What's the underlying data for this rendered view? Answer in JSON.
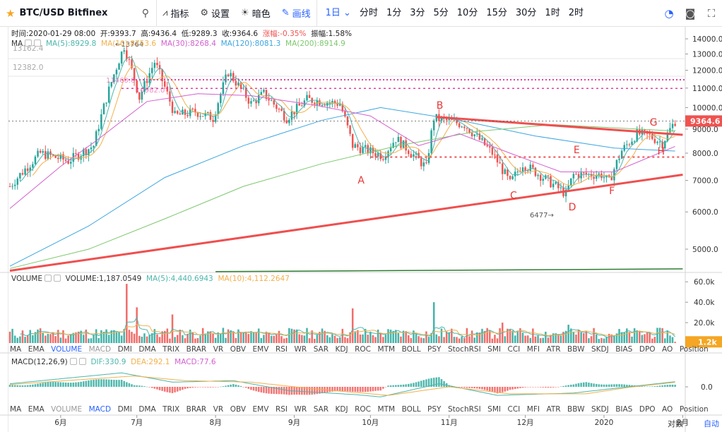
{
  "toolbar": {
    "symbol": "BTC/USD Bitfinex",
    "indicators_label": "指标",
    "settings_label": "设置",
    "theme_label": "暗色",
    "draw_label": "画线",
    "intervals": [
      "1日",
      "分时",
      "1分",
      "3分",
      "5分",
      "10分",
      "15分",
      "30分",
      "1时",
      "2时"
    ],
    "active_interval": "1日"
  },
  "ohlc_legend": {
    "time": "时间:2020-01-29 08:00",
    "open": "开:9393.7",
    "high": "高:9436.4",
    "low": "低:9289.3",
    "close": "收:9364.6",
    "change": "涨幅:-0.35%",
    "amplitude": "振幅:1.58%"
  },
  "ma_legend": {
    "label": "MA",
    "ma5": "MA(5):8929.8",
    "ma10": "MA(10):8753.6",
    "ma30": "MA(30):8268.4",
    "ma120": "MA(120):8081.3",
    "ma200": "MA(200):8914.9"
  },
  "volume_legend": {
    "label": "VOLUME",
    "volume": "VOLUME:1,187.0549",
    "ma5": "MA(5):4,440.6943",
    "ma10": "MA(10):4,112.2647"
  },
  "macd_legend": {
    "label": "MACD(12,26,9)",
    "dif": "DIF:330.9",
    "dea": "DEA:292.1",
    "macd": "MACD:77.6"
  },
  "indicator_tabs": [
    "MA",
    "EMA",
    "VOLUME",
    "MACD",
    "DMI",
    "DMA",
    "TRIX",
    "BRAR",
    "VR",
    "OBV",
    "EMV",
    "RSI",
    "WR",
    "SAR",
    "KDJ",
    "ROC",
    "MTM",
    "BOLL",
    "PSY",
    "StochRSI",
    "SMI",
    "CCI",
    "MFI",
    "ATR",
    "BBW",
    "SKDJ",
    "BIAS",
    "DPO",
    "AO",
    "Position"
  ],
  "indicator_tabs_state_1": {
    "on": [
      "VOLUME"
    ],
    "dim": [
      "MACD"
    ]
  },
  "indicator_tabs_state_2": {
    "on": [
      "MACD"
    ],
    "dim": [
      "VOLUME"
    ]
  },
  "footer": {
    "scale_label": "对数",
    "auto_label": "自动"
  },
  "colors": {
    "up": "#26a69a",
    "down": "#ef5350",
    "ma5": "#4db6ac",
    "ma10": "#f2b04c",
    "ma30": "#d35fd0",
    "ma120": "#3ea6e0",
    "ma200": "#7cc86c",
    "trend": "#ef4f4f",
    "accent": "#2962ff"
  },
  "chart_data": {
    "type": "candlestick",
    "y_scale": "log",
    "price_ticks": [
      14000,
      13000,
      12000,
      11000,
      10000,
      9000,
      8000,
      7000,
      6000,
      5000
    ],
    "price_tick_labels": [
      "14000.0",
      "13000.0",
      "12000.0",
      "11000.0",
      "10000.0",
      "9000.0",
      "8000.0",
      "7000.0",
      "6000.0",
      "5000.0"
    ],
    "last_price_label": "9364.6",
    "upper_left_levels": [
      "13162.4",
      "12382.0"
    ],
    "high_marker_label": "13764",
    "low_marker_label": "6477",
    "ref_line_labels": [
      "11460.0",
      "10982.0"
    ],
    "horizontal_levels": [
      11460,
      10982,
      7850
    ],
    "pattern_labels": [
      {
        "text": "A",
        "date": "2019-09-26",
        "price": 6900
      },
      {
        "text": "B",
        "date": "2019-10-27",
        "price": 9950
      },
      {
        "text": "C",
        "date": "2019-11-25",
        "price": 6400
      },
      {
        "text": "D",
        "date": "2019-12-18",
        "price": 6050
      },
      {
        "text": "E",
        "date": "2019-12-20",
        "price": 8000
      },
      {
        "text": "F",
        "date": "2020-01-03",
        "price": 6550
      },
      {
        "text": "G",
        "date": "2020-01-19",
        "price": 9150
      },
      {
        "text": "H",
        "date": "2020-01-22",
        "price": 7950
      }
    ],
    "x_labels": [
      "6月",
      "7月",
      "8月",
      "9月",
      "10月",
      "11月",
      "12月",
      "2020",
      "2月"
    ],
    "x_label_dates": [
      "2019-06-01",
      "2019-07-01",
      "2019-08-01",
      "2019-09-01",
      "2019-10-01",
      "2019-11-01",
      "2019-12-01",
      "2020-01-01",
      "2020-02-01"
    ],
    "anchors": [
      [
        "2019-05-12",
        6800
      ],
      [
        "2019-05-24",
        8000
      ],
      [
        "2019-06-04",
        7700
      ],
      [
        "2019-06-14",
        8300
      ],
      [
        "2019-06-26",
        13500
      ],
      [
        "2019-07-02",
        10500
      ],
      [
        "2019-07-08",
        12500
      ],
      [
        "2019-07-16",
        9600
      ],
      [
        "2019-07-24",
        9800
      ],
      [
        "2019-07-31",
        9500
      ],
      [
        "2019-08-06",
        11900
      ],
      [
        "2019-08-15",
        10200
      ],
      [
        "2019-08-20",
        10700
      ],
      [
        "2019-08-29",
        9500
      ],
      [
        "2019-09-06",
        10400
      ],
      [
        "2019-09-19",
        10200
      ],
      [
        "2019-09-24",
        8300
      ],
      [
        "2019-10-06",
        7900
      ],
      [
        "2019-10-11",
        8600
      ],
      [
        "2019-10-23",
        7450
      ],
      [
        "2019-10-26",
        9500
      ],
      [
        "2019-11-07",
        9200
      ],
      [
        "2019-11-18",
        8000
      ],
      [
        "2019-11-25",
        6900
      ],
      [
        "2019-11-30",
        7600
      ],
      [
        "2019-12-17",
        6550
      ],
      [
        "2019-12-20",
        7200
      ],
      [
        "2019-12-31",
        7200
      ],
      [
        "2020-01-03",
        6950
      ],
      [
        "2020-01-08",
        8100
      ],
      [
        "2020-01-14",
        8800
      ],
      [
        "2020-01-19",
        8700
      ],
      [
        "2020-01-24",
        8400
      ],
      [
        "2020-01-29",
        9364.6
      ]
    ],
    "ma_lines": [
      {
        "name": "MA(120)",
        "points": [
          [
            "2019-05-12",
            4600
          ],
          [
            "2019-06-12",
            5600
          ],
          [
            "2019-07-12",
            7100
          ],
          [
            "2019-08-12",
            8300
          ],
          [
            "2019-09-12",
            9400
          ],
          [
            "2019-10-05",
            10000
          ],
          [
            "2019-11-05",
            9400
          ],
          [
            "2019-12-05",
            8700
          ],
          [
            "2020-01-05",
            8200
          ],
          [
            "2020-01-29",
            8081.3
          ]
        ]
      },
      {
        "name": "MA(200)",
        "points": [
          [
            "2019-05-12",
            4550
          ],
          [
            "2019-06-12",
            5000
          ],
          [
            "2019-07-12",
            5800
          ],
          [
            "2019-08-12",
            6800
          ],
          [
            "2019-09-12",
            7600
          ],
          [
            "2019-10-12",
            8300
          ],
          [
            "2019-11-12",
            8900
          ],
          [
            "2019-12-12",
            9200
          ],
          [
            "2020-01-29",
            8914.9
          ]
        ]
      },
      {
        "name": "MA(30)",
        "points": [
          [
            "2019-05-12",
            6100
          ],
          [
            "2019-06-01",
            7500
          ],
          [
            "2019-06-15",
            8500
          ],
          [
            "2019-07-05",
            10300
          ],
          [
            "2019-07-25",
            10700
          ],
          [
            "2019-08-15",
            10600
          ],
          [
            "2019-09-10",
            10100
          ],
          [
            "2019-10-01",
            9600
          ],
          [
            "2019-10-20",
            8300
          ],
          [
            "2019-11-05",
            8800
          ],
          [
            "2019-11-25",
            8000
          ],
          [
            "2019-12-15",
            7300
          ],
          [
            "2020-01-05",
            7300
          ],
          [
            "2020-01-29",
            8268.4
          ]
        ]
      }
    ],
    "trendlines": [
      {
        "from": [
          "2019-05-12",
          4500
        ],
        "to": [
          "2020-02-01",
          7200
        ],
        "color": "trend"
      },
      {
        "from": [
          "2019-10-27",
          9550
        ],
        "to": [
          "2020-02-01",
          8750
        ],
        "color": "trend"
      },
      {
        "from": [
          "2019-08-01",
          4480
        ],
        "to": [
          "2020-02-01",
          4540
        ],
        "color": "green"
      }
    ],
    "volume": {
      "ticks": [
        "60.0k",
        "40.0k",
        "20.0k"
      ],
      "tick_values": [
        60000,
        40000,
        20000
      ],
      "last_label": "1.2k",
      "last_value": 1187.0549,
      "spikes": [
        [
          "2019-06-27",
          58000
        ],
        [
          "2019-07-01",
          35000
        ],
        [
          "2019-07-15",
          28000
        ],
        [
          "2019-09-24",
          34000
        ],
        [
          "2019-10-26",
          40000
        ],
        [
          "2019-11-22",
          20000
        ],
        [
          "2019-12-18",
          18000
        ]
      ],
      "base": 10000
    },
    "macd": {
      "zero_label": "0.0",
      "dif": 330.9,
      "dea": 292.1,
      "hist": 77.6,
      "dif_points": [
        [
          "2019-05-12",
          200
        ],
        [
          "2019-06-25",
          900
        ],
        [
          "2019-07-15",
          300
        ],
        [
          "2019-08-08",
          400
        ],
        [
          "2019-08-30",
          -250
        ],
        [
          "2019-09-25",
          -500
        ],
        [
          "2019-10-05",
          -650
        ],
        [
          "2019-10-28",
          200
        ],
        [
          "2019-11-20",
          -550
        ],
        [
          "2019-12-20",
          -400
        ],
        [
          "2020-01-05",
          -100
        ],
        [
          "2020-01-29",
          330.9
        ]
      ],
      "dea_points": [
        [
          "2019-05-12",
          150
        ],
        [
          "2019-06-30",
          700
        ],
        [
          "2019-07-20",
          400
        ],
        [
          "2019-08-15",
          300
        ],
        [
          "2019-09-10",
          -150
        ],
        [
          "2019-10-08",
          -550
        ],
        [
          "2019-11-01",
          0
        ],
        [
          "2019-11-25",
          -450
        ],
        [
          "2019-12-25",
          -450
        ],
        [
          "2020-01-10",
          -50
        ],
        [
          "2020-01-29",
          292.1
        ]
      ]
    }
  }
}
